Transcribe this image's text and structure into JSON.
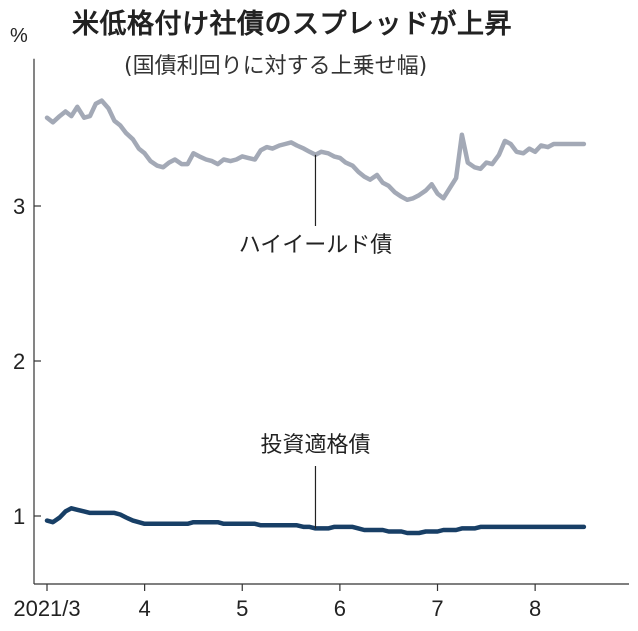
{
  "title": "米低格付け社債のスプレッドが上昇",
  "subtitle": "(国債利回りに対する上乗せ幅)",
  "chart_data": {
    "type": "line",
    "title": "米低格付け社債のスプレッドが上昇",
    "subtitle": "(国債利回りに対する上乗せ幅)",
    "y_unit": "%",
    "ylim": [
      0.6,
      3.95
    ],
    "yticks": [
      1,
      2,
      3
    ],
    "xlim": [
      0,
      5.9
    ],
    "x_ticks": [
      {
        "value": 0,
        "label": "2021/3"
      },
      {
        "value": 1,
        "label": "4"
      },
      {
        "value": 2,
        "label": "5"
      },
      {
        "value": 3,
        "label": "6"
      },
      {
        "value": 4,
        "label": "7"
      },
      {
        "value": 5,
        "label": "8"
      }
    ],
    "x_unit_note": "months since start of March 2021",
    "grid": false,
    "legend": "none (series labeled directly on chart)",
    "series": [
      {
        "name": "ハイイールド債",
        "color": "#a3a9b6",
        "x": [
          0.0,
          0.06,
          0.13,
          0.19,
          0.25,
          0.31,
          0.38,
          0.44,
          0.5,
          0.56,
          0.63,
          0.69,
          0.75,
          0.81,
          0.88,
          0.94,
          1.0,
          1.06,
          1.13,
          1.19,
          1.25,
          1.31,
          1.38,
          1.44,
          1.5,
          1.56,
          1.63,
          1.69,
          1.75,
          1.81,
          1.88,
          1.94,
          2.0,
          2.06,
          2.13,
          2.19,
          2.25,
          2.31,
          2.38,
          2.44,
          2.5,
          2.56,
          2.63,
          2.69,
          2.75,
          2.81,
          2.88,
          2.94,
          3.0,
          3.06,
          3.13,
          3.19,
          3.25,
          3.31,
          3.38,
          3.44,
          3.5,
          3.56,
          3.63,
          3.69,
          3.75,
          3.81,
          3.88,
          3.94,
          4.0,
          4.06,
          4.13,
          4.19,
          4.25,
          4.31,
          4.38,
          4.44,
          4.5,
          4.56,
          4.63,
          4.69,
          4.75,
          4.81,
          4.88,
          4.94,
          5.0,
          5.06,
          5.13,
          5.19,
          5.25,
          5.31,
          5.38,
          5.44,
          5.5
        ],
        "values": [
          3.57,
          3.54,
          3.58,
          3.61,
          3.58,
          3.64,
          3.57,
          3.58,
          3.66,
          3.68,
          3.63,
          3.55,
          3.52,
          3.47,
          3.43,
          3.37,
          3.34,
          3.29,
          3.26,
          3.25,
          3.28,
          3.3,
          3.27,
          3.27,
          3.34,
          3.32,
          3.3,
          3.29,
          3.27,
          3.3,
          3.29,
          3.3,
          3.32,
          3.31,
          3.3,
          3.36,
          3.38,
          3.37,
          3.39,
          3.4,
          3.41,
          3.39,
          3.37,
          3.35,
          3.33,
          3.35,
          3.34,
          3.32,
          3.31,
          3.28,
          3.26,
          3.22,
          3.19,
          3.17,
          3.2,
          3.15,
          3.13,
          3.09,
          3.06,
          3.04,
          3.05,
          3.07,
          3.1,
          3.14,
          3.08,
          3.05,
          3.12,
          3.18,
          3.46,
          3.28,
          3.25,
          3.24,
          3.28,
          3.27,
          3.33,
          3.42,
          3.4,
          3.35,
          3.34,
          3.37,
          3.35,
          3.39,
          3.38,
          3.4,
          3.4,
          3.4,
          3.4,
          3.4,
          3.4
        ],
        "annotation_at_x": 2.75
      },
      {
        "name": "投資適格債",
        "color": "#183f66",
        "x": [
          0.0,
          0.06,
          0.13,
          0.19,
          0.25,
          0.31,
          0.38,
          0.44,
          0.5,
          0.56,
          0.63,
          0.69,
          0.75,
          0.81,
          0.88,
          0.94,
          1.0,
          1.06,
          1.13,
          1.19,
          1.25,
          1.31,
          1.38,
          1.44,
          1.5,
          1.56,
          1.63,
          1.69,
          1.75,
          1.81,
          1.88,
          1.94,
          2.0,
          2.06,
          2.13,
          2.19,
          2.25,
          2.31,
          2.38,
          2.44,
          2.5,
          2.56,
          2.63,
          2.69,
          2.75,
          2.81,
          2.88,
          2.94,
          3.0,
          3.06,
          3.13,
          3.19,
          3.25,
          3.31,
          3.38,
          3.44,
          3.5,
          3.56,
          3.63,
          3.69,
          3.75,
          3.81,
          3.88,
          3.94,
          4.0,
          4.06,
          4.13,
          4.19,
          4.25,
          4.31,
          4.38,
          4.44,
          4.5,
          4.56,
          4.63,
          4.69,
          4.75,
          4.81,
          4.88,
          4.94,
          5.0,
          5.06,
          5.13,
          5.19,
          5.25,
          5.31,
          5.38,
          5.44,
          5.5
        ],
        "values": [
          0.97,
          0.96,
          0.99,
          1.03,
          1.05,
          1.04,
          1.03,
          1.02,
          1.02,
          1.02,
          1.02,
          1.02,
          1.01,
          0.99,
          0.97,
          0.96,
          0.95,
          0.95,
          0.95,
          0.95,
          0.95,
          0.95,
          0.95,
          0.95,
          0.96,
          0.96,
          0.96,
          0.96,
          0.96,
          0.95,
          0.95,
          0.95,
          0.95,
          0.95,
          0.95,
          0.94,
          0.94,
          0.94,
          0.94,
          0.94,
          0.94,
          0.94,
          0.93,
          0.93,
          0.92,
          0.92,
          0.92,
          0.93,
          0.93,
          0.93,
          0.93,
          0.92,
          0.91,
          0.91,
          0.91,
          0.91,
          0.9,
          0.9,
          0.9,
          0.89,
          0.89,
          0.89,
          0.9,
          0.9,
          0.9,
          0.91,
          0.91,
          0.91,
          0.92,
          0.92,
          0.92,
          0.93,
          0.93,
          0.93,
          0.93,
          0.93,
          0.93,
          0.93,
          0.93,
          0.93,
          0.93,
          0.93,
          0.93,
          0.93,
          0.93,
          0.93,
          0.93,
          0.93,
          0.93
        ],
        "annotation_at_x": 2.75
      }
    ]
  }
}
